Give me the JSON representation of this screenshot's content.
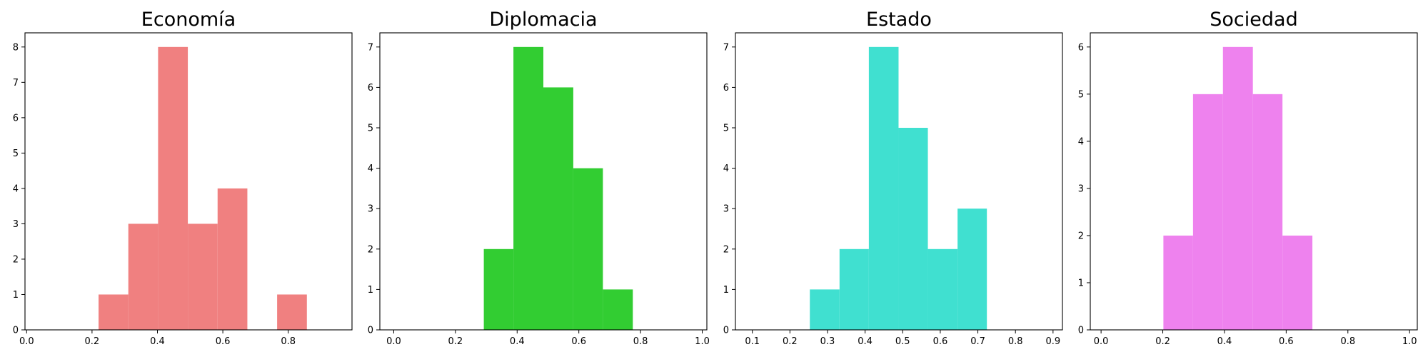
{
  "chart_data": [
    {
      "type": "bar",
      "title": "Economía",
      "color": "#f08080",
      "xlim": [
        -0.005,
        0.995
      ],
      "ylim": [
        0,
        8.4
      ],
      "xticks": [
        "0.0",
        "0.2",
        "0.4",
        "0.6",
        "0.8"
      ],
      "yticks": [
        "0",
        "1",
        "2",
        "3",
        "4",
        "5",
        "6",
        "7",
        "8"
      ],
      "bins": [
        {
          "x0": 0.22,
          "x1": 0.311,
          "count": 1
        },
        {
          "x0": 0.311,
          "x1": 0.402,
          "count": 3
        },
        {
          "x0": 0.402,
          "x1": 0.493,
          "count": 8
        },
        {
          "x0": 0.493,
          "x1": 0.584,
          "count": 3
        },
        {
          "x0": 0.584,
          "x1": 0.675,
          "count": 4
        },
        {
          "x0": 0.675,
          "x1": 0.766,
          "count": 0
        },
        {
          "x0": 0.766,
          "x1": 0.857,
          "count": 1
        }
      ]
    },
    {
      "type": "bar",
      "title": "Diplomacia",
      "color": "#32cd32",
      "xlim": [
        -0.045,
        1.015
      ],
      "ylim": [
        0,
        7.35
      ],
      "xticks": [
        "0.0",
        "0.2",
        "0.4",
        "0.6",
        "0.8",
        "1.0"
      ],
      "yticks": [
        "0",
        "1",
        "2",
        "3",
        "4",
        "5",
        "6",
        "7"
      ],
      "bins": [
        {
          "x0": 0.292,
          "x1": 0.388,
          "count": 2
        },
        {
          "x0": 0.388,
          "x1": 0.485,
          "count": 7
        },
        {
          "x0": 0.485,
          "x1": 0.582,
          "count": 6
        },
        {
          "x0": 0.582,
          "x1": 0.678,
          "count": 4
        },
        {
          "x0": 0.678,
          "x1": 0.775,
          "count": 1
        }
      ]
    },
    {
      "type": "bar",
      "title": "Estado",
      "color": "#40e0d0",
      "xlim": [
        0.055,
        0.925
      ],
      "ylim": [
        0,
        7.35
      ],
      "xticks": [
        "0.1",
        "0.2",
        "0.3",
        "0.4",
        "0.5",
        "0.6",
        "0.7",
        "0.8",
        "0.9"
      ],
      "yticks": [
        "0",
        "1",
        "2",
        "3",
        "4",
        "5",
        "6",
        "7"
      ],
      "bins": [
        {
          "x0": 0.253,
          "x1": 0.332,
          "count": 1
        },
        {
          "x0": 0.332,
          "x1": 0.41,
          "count": 2
        },
        {
          "x0": 0.41,
          "x1": 0.489,
          "count": 7
        },
        {
          "x0": 0.489,
          "x1": 0.567,
          "count": 5
        },
        {
          "x0": 0.567,
          "x1": 0.646,
          "count": 2
        },
        {
          "x0": 0.646,
          "x1": 0.724,
          "count": 3
        }
      ]
    },
    {
      "type": "bar",
      "title": "Sociedad",
      "color": "#ee82ee",
      "xlim": [
        -0.035,
        1.025
      ],
      "ylim": [
        0,
        6.3
      ],
      "xticks": [
        "0.0",
        "0.2",
        "0.4",
        "0.6",
        "0.8",
        "1.0"
      ],
      "yticks": [
        "0",
        "1",
        "2",
        "3",
        "4",
        "5",
        "6"
      ],
      "bins": [
        {
          "x0": 0.202,
          "x1": 0.298,
          "count": 2
        },
        {
          "x0": 0.298,
          "x1": 0.395,
          "count": 5
        },
        {
          "x0": 0.395,
          "x1": 0.492,
          "count": 6
        },
        {
          "x0": 0.492,
          "x1": 0.588,
          "count": 5
        },
        {
          "x0": 0.588,
          "x1": 0.685,
          "count": 2
        }
      ]
    }
  ]
}
